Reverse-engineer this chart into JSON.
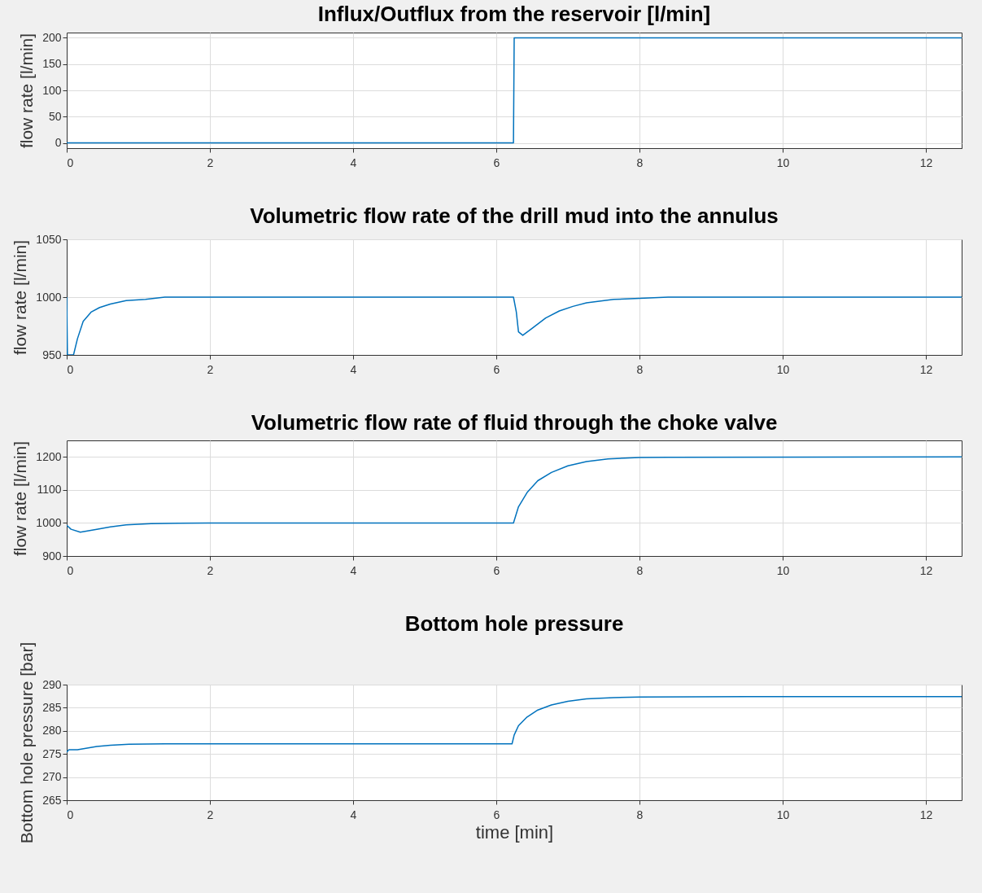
{
  "chart_data": [
    {
      "type": "line",
      "title": "Influx/Outflux from the reservoir [l/min]",
      "ylabel": "flow rate [l/min]",
      "x": [
        0,
        6.24,
        6.25,
        12.5
      ],
      "values": [
        0,
        0,
        200,
        200
      ],
      "color": "#0072bd",
      "xlim": [
        0,
        12.5
      ],
      "xticks": [
        0,
        2,
        4,
        6,
        8,
        10,
        12
      ],
      "ylim": [
        -10,
        210
      ],
      "yticks": [
        0,
        50,
        100,
        150,
        200
      ],
      "grid": true
    },
    {
      "type": "line",
      "title": "Volumetric flow rate of the drill mud into the annulus",
      "ylabel": "flow rate [l/min]",
      "x": [
        0,
        0.01,
        0.095,
        0.15,
        0.23,
        0.34,
        0.46,
        0.61,
        0.83,
        1.1,
        1.37,
        2,
        6.24,
        6.28,
        6.31,
        6.37,
        6.5,
        6.69,
        6.88,
        7.07,
        7.26,
        7.64,
        8,
        8.4,
        12.5
      ],
      "values": [
        1000,
        950,
        950,
        964,
        979,
        987,
        991,
        994,
        997,
        998,
        1000,
        1000,
        1000,
        987,
        970,
        967,
        973,
        982,
        988,
        992,
        995,
        998,
        999,
        1000,
        1000
      ],
      "color": "#0072bd",
      "xlim": [
        0,
        12.5
      ],
      "xticks": [
        0,
        2,
        4,
        6,
        8,
        10,
        12
      ],
      "ylim": [
        950,
        1050
      ],
      "yticks": [
        950,
        1000,
        1050
      ],
      "grid": true
    },
    {
      "type": "line",
      "title": "Volumetric flow rate of fluid through the choke valve",
      "ylabel": "flow rate [l/min]",
      "x": [
        0,
        0.06,
        0.19,
        0.42,
        0.61,
        0.83,
        1.18,
        1.56,
        2,
        6.24,
        6.31,
        6.43,
        6.58,
        6.77,
        7.0,
        7.26,
        7.56,
        8,
        8.4,
        12.5
      ],
      "values": [
        993,
        981,
        972,
        981,
        988,
        994,
        998,
        999,
        1000,
        1000,
        1049,
        1092,
        1128,
        1153,
        1173,
        1186,
        1194,
        1198,
        1199,
        1200
      ],
      "color": "#0072bd",
      "xlim": [
        0,
        12.5
      ],
      "xticks": [
        0,
        2,
        4,
        6,
        8,
        10,
        12
      ],
      "ylim": [
        900,
        1250
      ],
      "yticks": [
        900,
        1000,
        1100,
        1200
      ],
      "grid": true
    },
    {
      "type": "line",
      "title": "Bottom hole pressure",
      "ylabel": "Bottom hole pressure [bar]",
      "xlabel": "time [min]",
      "x": [
        0,
        0.03,
        0.15,
        0.42,
        0.61,
        0.87,
        1.37,
        6.22,
        6.25,
        6.31,
        6.43,
        6.58,
        6.77,
        7.0,
        7.26,
        7.64,
        8,
        9.5,
        12.5
      ],
      "values": [
        275.4,
        275.9,
        275.9,
        276.6,
        276.9,
        277.1,
        277.2,
        277.2,
        279.1,
        281.1,
        283,
        284.5,
        285.6,
        286.4,
        286.9,
        287.2,
        287.3,
        287.4,
        287.4
      ],
      "color": "#0072bd",
      "xlim": [
        0,
        12.5
      ],
      "xticks": [
        0,
        2,
        4,
        6,
        8,
        10,
        12
      ],
      "ylim": [
        265,
        290
      ],
      "yticks": [
        265,
        270,
        275,
        280,
        285,
        290
      ],
      "grid": true
    }
  ]
}
